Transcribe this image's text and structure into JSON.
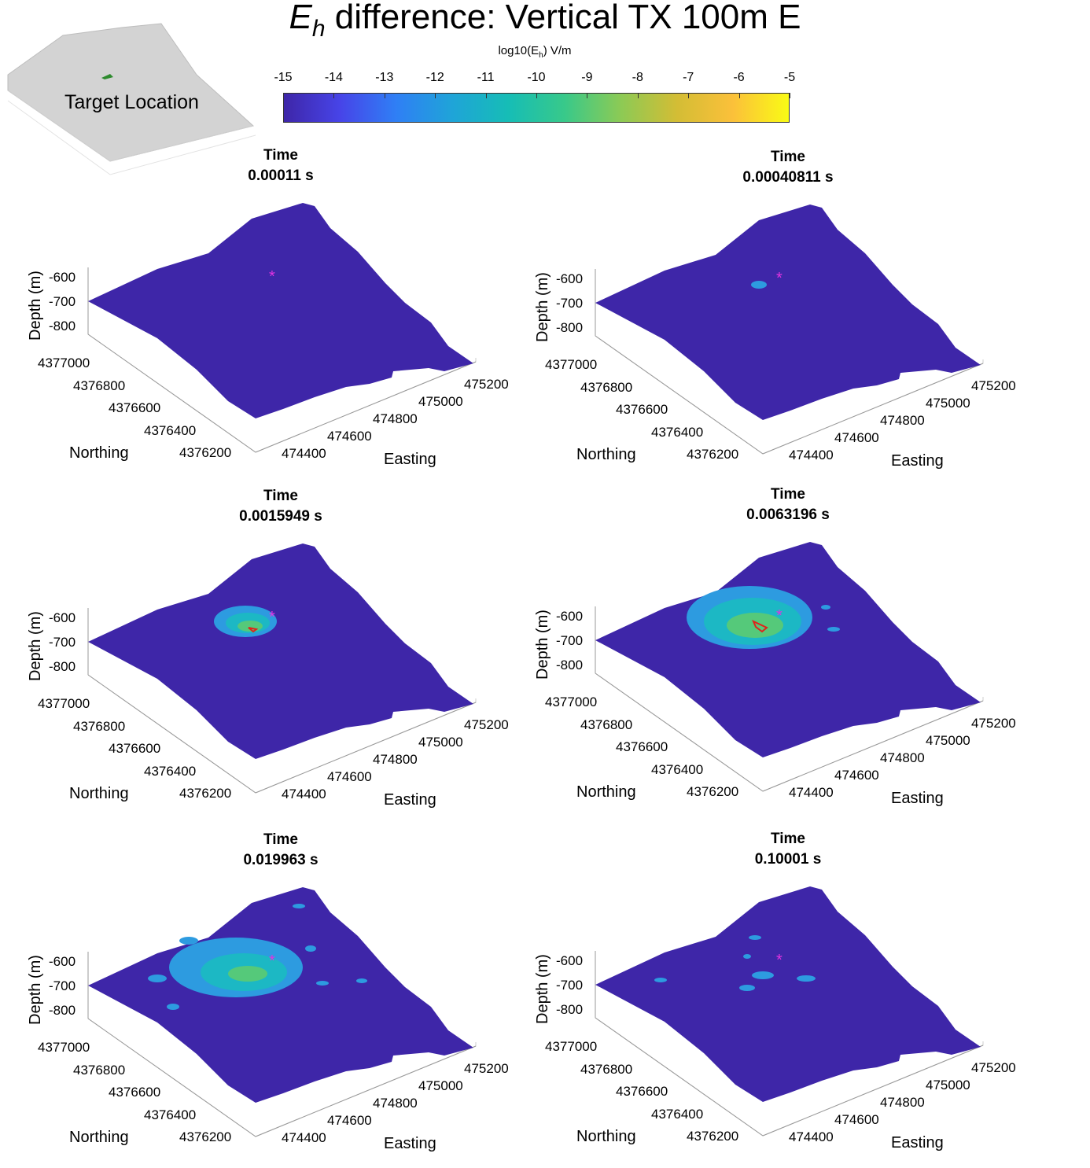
{
  "title_italic": "E",
  "title_italic_sub": "h",
  "title_rest": " difference: Vertical TX 100m E",
  "colorbar": {
    "label_prefix": "log10(E",
    "label_sub": "h",
    "label_suffix": ") V/m",
    "ticks": [
      "-15",
      "-14",
      "-13",
      "-12",
      "-11",
      "-10",
      "-9",
      "-8",
      "-7",
      "-6",
      "-5"
    ],
    "range": [
      -15,
      -5
    ],
    "colormap": "parula"
  },
  "inset": {
    "label": "Target Location",
    "target_color": "#2e8b2e"
  },
  "axes": {
    "depth_label": "Depth (m)",
    "depth_ticks": [
      "-600",
      "-700",
      "-800"
    ],
    "northing_label": "Northing",
    "northing_ticks": [
      "4377000",
      "4376800",
      "4376600",
      "4376400",
      "4376200"
    ],
    "easting_label": "Easting",
    "easting_ticks": [
      "475200",
      "475000",
      "474800",
      "474600",
      "474400"
    ]
  },
  "colors": {
    "background_field": "#3e26a8",
    "low_anomaly": "#2d9be0",
    "mid_anomaly": "#1cb8c4",
    "high_anomaly": "#55c97a",
    "core_contour": "#e0231a",
    "tx_marker": "#e033e0"
  },
  "chart_data": {
    "type": "heatmap",
    "panels": [
      {
        "time_label": "Time",
        "time_value": "0.00011 s",
        "time_s": 0.00011,
        "max_log10_Eh": -15
      },
      {
        "time_label": "Time",
        "time_value": "0.00040811 s",
        "time_s": 0.00040811,
        "max_log10_Eh": -12
      },
      {
        "time_label": "Time",
        "time_value": "0.0015949 s",
        "time_s": 0.0015949,
        "max_log10_Eh": -7
      },
      {
        "time_label": "Time",
        "time_value": "0.0063196 s",
        "time_s": 0.0063196,
        "max_log10_Eh": -7
      },
      {
        "time_label": "Time",
        "time_value": "0.019963 s",
        "time_s": 0.019963,
        "max_log10_Eh": -9
      },
      {
        "time_label": "Time",
        "time_value": "0.10001 s",
        "time_s": 0.10001,
        "max_log10_Eh": -12
      }
    ]
  }
}
